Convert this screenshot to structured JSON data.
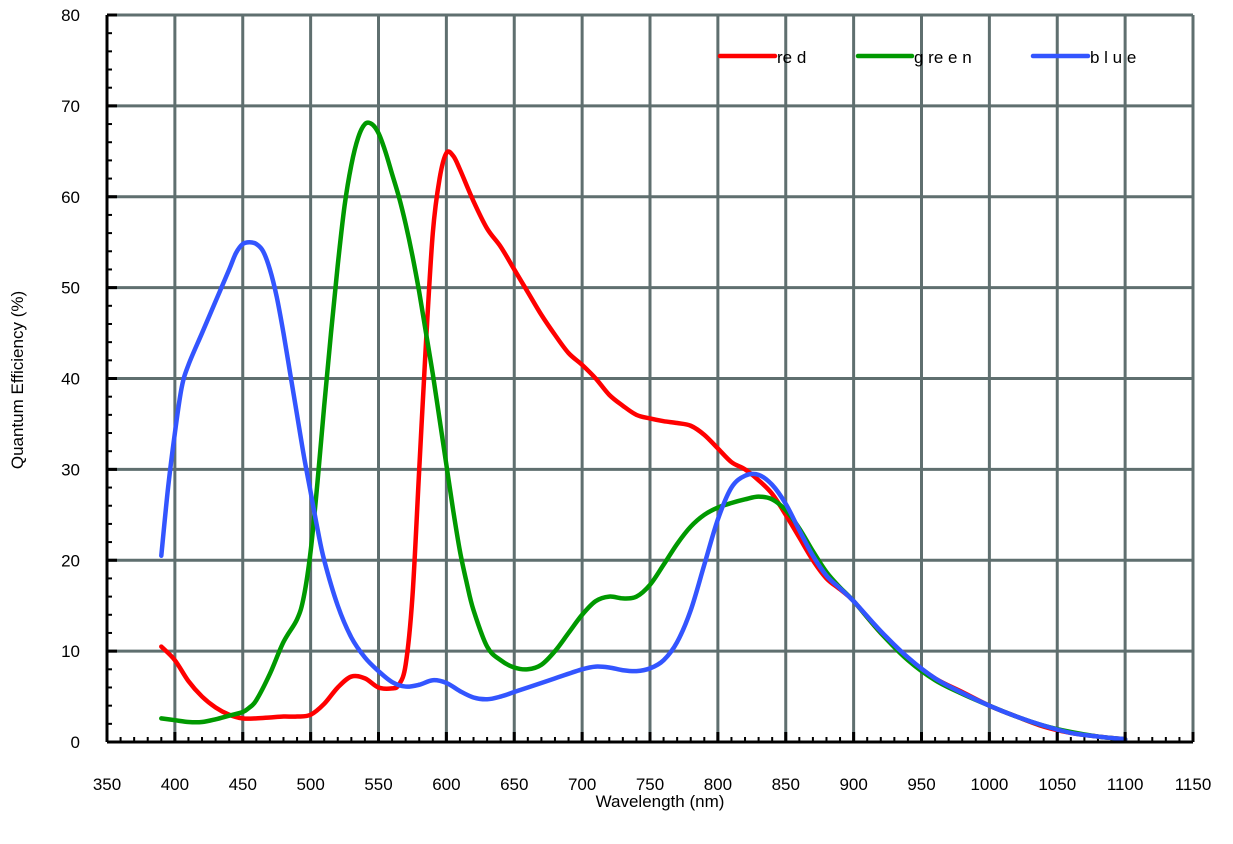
{
  "chart_data": {
    "type": "line",
    "title": "",
    "xlabel": "Wavelength (nm)",
    "ylabel": "Quantum Efficiency (%)",
    "xlim": [
      350,
      1150
    ],
    "ylim": [
      0,
      80
    ],
    "x_ticks": [
      350,
      400,
      450,
      500,
      550,
      600,
      650,
      700,
      750,
      800,
      850,
      900,
      950,
      1000,
      1050,
      1100,
      1150
    ],
    "y_ticks": [
      0,
      10,
      20,
      30,
      40,
      50,
      60,
      70,
      80
    ],
    "x_tick_labels": [
      "350",
      "400",
      "450",
      "500",
      "550",
      "600",
      "650",
      "700",
      "750",
      "800",
      "850",
      "900",
      "950",
      "1000",
      "1050",
      "1100",
      "1150"
    ],
    "y_tick_labels": [
      "0",
      "10",
      "20",
      "30",
      "40",
      "50",
      "60",
      "70",
      "80"
    ],
    "grid": true,
    "grid_color": "#5f6f6f",
    "legend_position": "top-right",
    "series": [
      {
        "name": "re d",
        "color": "#ff0000",
        "points": [
          [
            390,
            10.5
          ],
          [
            400,
            9.0
          ],
          [
            410,
            6.7
          ],
          [
            420,
            5.0
          ],
          [
            430,
            3.8
          ],
          [
            440,
            3.0
          ],
          [
            450,
            2.6
          ],
          [
            460,
            2.6
          ],
          [
            470,
            2.7
          ],
          [
            480,
            2.8
          ],
          [
            490,
            2.8
          ],
          [
            500,
            3.0
          ],
          [
            510,
            4.2
          ],
          [
            520,
            6.0
          ],
          [
            530,
            7.2
          ],
          [
            540,
            7.0
          ],
          [
            550,
            6.0
          ],
          [
            560,
            5.9
          ],
          [
            565,
            6.3
          ],
          [
            570,
            8.5
          ],
          [
            575,
            16.0
          ],
          [
            580,
            30.0
          ],
          [
            585,
            44.0
          ],
          [
            590,
            56.0
          ],
          [
            595,
            62.0
          ],
          [
            600,
            64.8
          ],
          [
            605,
            64.5
          ],
          [
            610,
            63.0
          ],
          [
            620,
            59.5
          ],
          [
            630,
            56.5
          ],
          [
            640,
            54.5
          ],
          [
            650,
            52.0
          ],
          [
            660,
            49.5
          ],
          [
            670,
            47.0
          ],
          [
            680,
            44.8
          ],
          [
            690,
            42.8
          ],
          [
            700,
            41.5
          ],
          [
            710,
            40.0
          ],
          [
            720,
            38.2
          ],
          [
            730,
            37.0
          ],
          [
            740,
            36.0
          ],
          [
            750,
            35.6
          ],
          [
            760,
            35.3
          ],
          [
            770,
            35.1
          ],
          [
            780,
            34.8
          ],
          [
            790,
            33.8
          ],
          [
            800,
            32.3
          ],
          [
            810,
            30.8
          ],
          [
            820,
            30.0
          ],
          [
            830,
            28.8
          ],
          [
            840,
            27.3
          ],
          [
            850,
            25.0
          ],
          [
            860,
            22.5
          ],
          [
            870,
            20.0
          ],
          [
            880,
            18.0
          ],
          [
            890,
            16.8
          ],
          [
            900,
            15.5
          ],
          [
            920,
            12.0
          ],
          [
            940,
            9.2
          ],
          [
            960,
            7.0
          ],
          [
            980,
            5.5
          ],
          [
            1000,
            4.0
          ],
          [
            1020,
            2.8
          ],
          [
            1040,
            1.7
          ],
          [
            1060,
            1.0
          ],
          [
            1080,
            0.6
          ],
          [
            1100,
            0.3
          ]
        ]
      },
      {
        "name": "g re e n",
        "color": "#009900",
        "points": [
          [
            390,
            2.6
          ],
          [
            400,
            2.4
          ],
          [
            410,
            2.2
          ],
          [
            420,
            2.2
          ],
          [
            430,
            2.5
          ],
          [
            440,
            2.9
          ],
          [
            450,
            3.3
          ],
          [
            455,
            3.8
          ],
          [
            460,
            4.6
          ],
          [
            470,
            7.5
          ],
          [
            480,
            11.0
          ],
          [
            490,
            13.5
          ],
          [
            495,
            16.0
          ],
          [
            500,
            21.0
          ],
          [
            505,
            28.5
          ],
          [
            510,
            37.0
          ],
          [
            515,
            45.0
          ],
          [
            520,
            52.5
          ],
          [
            525,
            59.0
          ],
          [
            530,
            63.5
          ],
          [
            535,
            66.5
          ],
          [
            540,
            68.0
          ],
          [
            545,
            68.0
          ],
          [
            550,
            67.0
          ],
          [
            555,
            65.0
          ],
          [
            560,
            62.5
          ],
          [
            565,
            60.0
          ],
          [
            570,
            57.0
          ],
          [
            575,
            53.5
          ],
          [
            580,
            49.5
          ],
          [
            585,
            45.0
          ],
          [
            590,
            40.5
          ],
          [
            595,
            35.5
          ],
          [
            600,
            30.5
          ],
          [
            605,
            25.5
          ],
          [
            610,
            21.0
          ],
          [
            615,
            17.5
          ],
          [
            620,
            14.5
          ],
          [
            630,
            10.5
          ],
          [
            640,
            9.0
          ],
          [
            650,
            8.2
          ],
          [
            660,
            8.0
          ],
          [
            670,
            8.5
          ],
          [
            680,
            10.0
          ],
          [
            690,
            12.0
          ],
          [
            700,
            14.0
          ],
          [
            710,
            15.5
          ],
          [
            720,
            16.0
          ],
          [
            730,
            15.8
          ],
          [
            740,
            16.0
          ],
          [
            750,
            17.3
          ],
          [
            760,
            19.5
          ],
          [
            770,
            21.8
          ],
          [
            780,
            23.7
          ],
          [
            790,
            25.0
          ],
          [
            800,
            25.8
          ],
          [
            810,
            26.3
          ],
          [
            820,
            26.7
          ],
          [
            830,
            27.0
          ],
          [
            840,
            26.7
          ],
          [
            850,
            25.5
          ],
          [
            860,
            23.5
          ],
          [
            870,
            21.0
          ],
          [
            880,
            18.7
          ],
          [
            890,
            17.0
          ],
          [
            900,
            15.5
          ],
          [
            920,
            12.0
          ],
          [
            940,
            9.0
          ],
          [
            960,
            6.8
          ],
          [
            980,
            5.3
          ],
          [
            1000,
            4.0
          ],
          [
            1020,
            2.8
          ],
          [
            1040,
            1.8
          ],
          [
            1060,
            1.1
          ],
          [
            1080,
            0.6
          ],
          [
            1100,
            0.3
          ]
        ]
      },
      {
        "name": "b l u e",
        "color": "#3355ff",
        "points": [
          [
            390,
            20.5
          ],
          [
            395,
            28.0
          ],
          [
            400,
            34.0
          ],
          [
            405,
            39.0
          ],
          [
            410,
            41.5
          ],
          [
            420,
            45.0
          ],
          [
            430,
            48.5
          ],
          [
            440,
            52.0
          ],
          [
            445,
            53.8
          ],
          [
            450,
            54.8
          ],
          [
            455,
            55.0
          ],
          [
            460,
            54.8
          ],
          [
            465,
            54.0
          ],
          [
            470,
            52.0
          ],
          [
            475,
            49.0
          ],
          [
            480,
            45.0
          ],
          [
            485,
            40.5
          ],
          [
            490,
            36.0
          ],
          [
            495,
            31.5
          ],
          [
            500,
            27.5
          ],
          [
            505,
            23.5
          ],
          [
            510,
            20.0
          ],
          [
            520,
            15.0
          ],
          [
            530,
            11.5
          ],
          [
            540,
            9.3
          ],
          [
            550,
            7.8
          ],
          [
            560,
            6.6
          ],
          [
            570,
            6.1
          ],
          [
            580,
            6.3
          ],
          [
            590,
            6.8
          ],
          [
            600,
            6.5
          ],
          [
            610,
            5.6
          ],
          [
            620,
            4.9
          ],
          [
            630,
            4.7
          ],
          [
            640,
            5.0
          ],
          [
            650,
            5.5
          ],
          [
            660,
            6.0
          ],
          [
            680,
            7.0
          ],
          [
            700,
            8.0
          ],
          [
            710,
            8.3
          ],
          [
            720,
            8.2
          ],
          [
            730,
            7.9
          ],
          [
            740,
            7.8
          ],
          [
            750,
            8.1
          ],
          [
            760,
            9.0
          ],
          [
            770,
            11.0
          ],
          [
            780,
            14.5
          ],
          [
            790,
            19.5
          ],
          [
            800,
            24.5
          ],
          [
            810,
            28.0
          ],
          [
            820,
            29.3
          ],
          [
            830,
            29.4
          ],
          [
            840,
            28.3
          ],
          [
            850,
            26.2
          ],
          [
            860,
            23.3
          ],
          [
            870,
            20.5
          ],
          [
            880,
            18.3
          ],
          [
            890,
            16.9
          ],
          [
            900,
            15.5
          ],
          [
            920,
            12.2
          ],
          [
            940,
            9.3
          ],
          [
            960,
            7.0
          ],
          [
            980,
            5.4
          ],
          [
            1000,
            4.0
          ],
          [
            1020,
            2.8
          ],
          [
            1040,
            1.8
          ],
          [
            1060,
            1.0
          ],
          [
            1080,
            0.6
          ],
          [
            1100,
            0.3
          ]
        ]
      }
    ]
  }
}
